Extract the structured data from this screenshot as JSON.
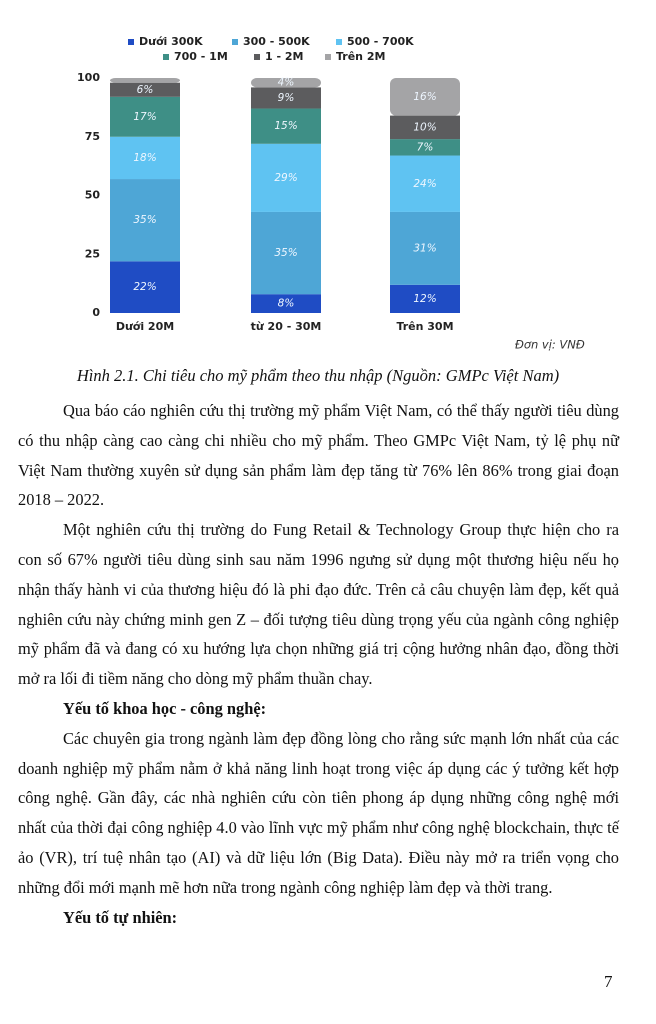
{
  "chart_data": {
    "type": "stacked-bar",
    "categories": [
      "Dưới 20M",
      "từ 20 - 30M",
      "Trên 30M"
    ],
    "series": [
      {
        "name": "Dưới 300K",
        "color": "#1f4cc4",
        "values": [
          22,
          8,
          12
        ],
        "value_labels": [
          "22%",
          "8%",
          "12%"
        ]
      },
      {
        "name": "300 - 500K",
        "color": "#4ea6d6",
        "values": [
          35,
          35,
          31
        ],
        "value_labels": [
          "35%",
          "35%",
          "31%"
        ]
      },
      {
        "name": "500 - 700K",
        "color": "#5fc3f2",
        "values": [
          18,
          29,
          24
        ],
        "value_labels": [
          "18%",
          "29%",
          "24%"
        ]
      },
      {
        "name": "700 - 1M",
        "color": "#3e8f86",
        "values": [
          17,
          15,
          7
        ],
        "value_labels": [
          "17%",
          "15%",
          "7%"
        ]
      },
      {
        "name": "1 - 2M",
        "color": "#5c5c5e",
        "values": [
          6,
          9,
          10
        ],
        "value_labels": [
          "6%",
          "9%",
          "10%"
        ]
      },
      {
        "name": "Trên 2M",
        "color": "#a4a4a6",
        "values": [
          2,
          4,
          16
        ],
        "value_labels": [
          null,
          "4%",
          "16%"
        ]
      }
    ],
    "ylim": [
      0,
      100
    ],
    "yticks": [
      0,
      25,
      50,
      75,
      100
    ],
    "annotation": "Đơn vị: VNĐ"
  },
  "document": {
    "caption": "Hình 2.1. Chi tiêu cho mỹ phẩm theo thu nhập (Nguồn: GMPc Việt Nam)",
    "paragraphs": [
      "Qua báo cáo nghiên cứu thị trường mỹ phẩm Việt Nam, có thể thấy người tiêu dùng có thu nhập càng cao càng chi nhiều cho mỹ phẩm. Theo GMPc Việt Nam, tỷ lệ phụ nữ Việt Nam thường xuyên sử dụng sản phẩm làm đẹp tăng từ 76% lên 86% trong giai đoạn 2018 – 2022.",
      "Một nghiên cứu thị trường do Fung Retail & Technology Group thực hiện cho ra con số 67% người tiêu dùng sinh sau năm 1996 ngưng sử dụng một thương hiệu nếu họ nhận thấy hành vi của thương hiệu đó là phi đạo đức. Trên cả câu chuyện làm đẹp, kết quả nghiên cứu này chứng minh gen Z – đối tượng tiêu dùng trọng yếu của ngành công nghiệp mỹ phẩm đã và đang có xu hướng lựa chọn những giá trị cộng hưởng nhân đạo, đồng thời mở ra lối đi tiềm năng cho dòng mỹ phẩm thuần chay."
    ],
    "heading_1": "Yếu tố khoa học - công nghệ:",
    "paragraph_3": "Các chuyên gia trong ngành làm đẹp đồng lòng cho rằng sức mạnh lớn nhất của các doanh nghiệp mỹ phẩm nằm ở khả năng linh hoạt trong việc áp dụng các ý tưởng kết hợp công nghệ. Gần đây, các nhà nghiên cứu còn tiên phong áp dụng những công nghệ mới nhất của thời đại công nghiệp 4.0 vào lĩnh vực mỹ phẩm như công nghệ blockchain, thực tế ảo (VR), trí tuệ nhân tạo (AI) và dữ liệu lớn (Big Data). Điều này mở ra triển vọng cho những đổi mới mạnh mẽ hơn nữa trong ngành công nghiệp làm đẹp và thời trang.",
    "heading_2": "Yếu tố tự nhiên:",
    "page_number": "7"
  }
}
